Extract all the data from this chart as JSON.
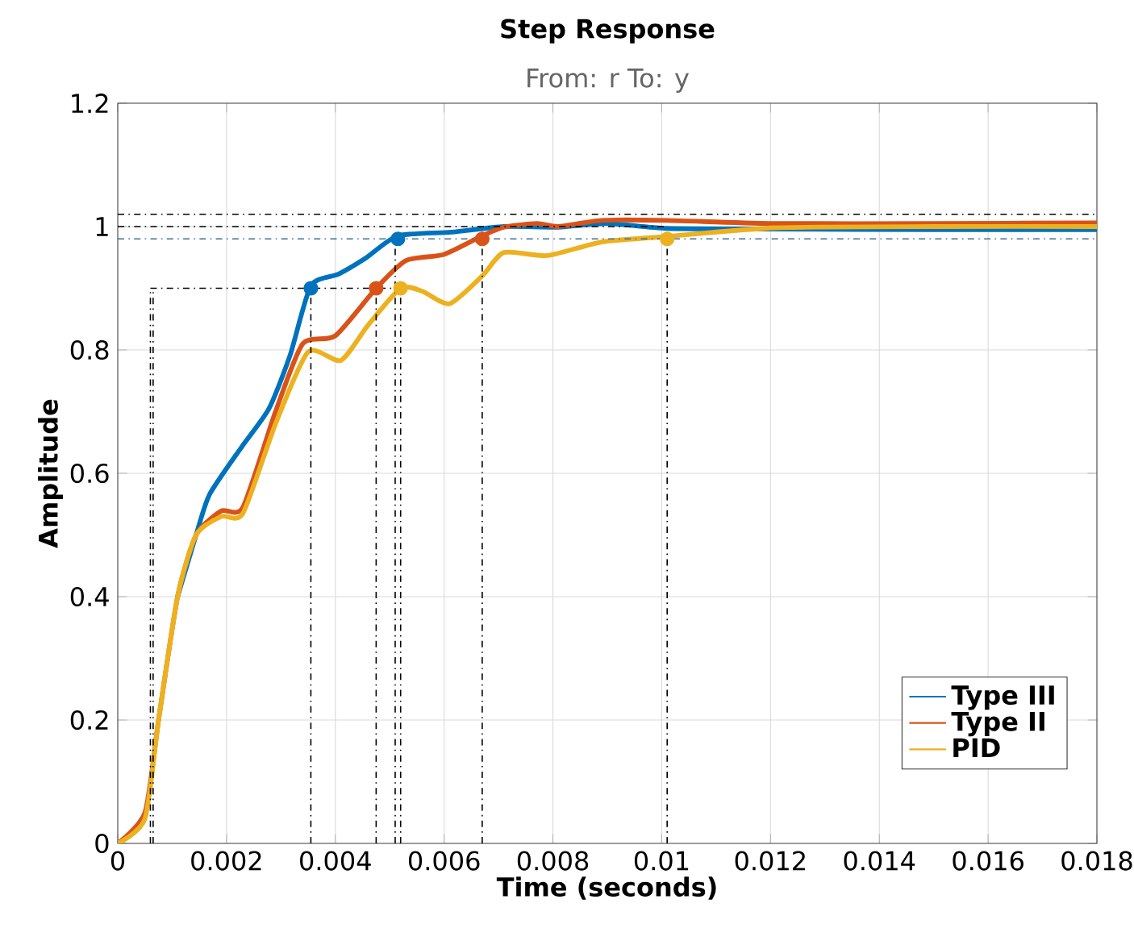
{
  "chart_data": {
    "type": "line",
    "title": "Step Response",
    "subtitle": "From: r To: y",
    "xlabel": "Time (seconds)",
    "ylabel": "Amplitude",
    "xlim": [
      0,
      0.018
    ],
    "ylim": [
      0,
      1.2
    ],
    "xticks": [
      0,
      0.002,
      0.004,
      0.006,
      0.008,
      0.01,
      0.012,
      0.014,
      0.016,
      0.018
    ],
    "yticks": [
      0,
      0.2,
      0.4,
      0.6,
      0.8,
      1,
      1.2
    ],
    "grid": true,
    "legend": "bottom right",
    "ref_lines": [
      {
        "axis": "y",
        "value": 1.02,
        "color": "#000000",
        "line_style": "dashed"
      },
      {
        "axis": "y",
        "value": 0.98,
        "color": "#3a6f9a",
        "line_style": "dashed"
      }
    ],
    "series": [
      {
        "name": "Type III",
        "color": "#0072bd",
        "x": [
          0.0011,
          0.00144,
          0.00169,
          0.00228,
          0.00278,
          0.00317,
          0.00355,
          0.00406,
          0.00456,
          0.00515,
          0.00614,
          0.0071,
          0.0081,
          0.009,
          0.0101,
          0.012,
          0.015,
          0.018
        ],
        "values": [
          0.4,
          0.5,
          0.566,
          0.643,
          0.705,
          0.792,
          0.904,
          0.923,
          0.949,
          0.985,
          0.991,
          1.0,
          0.999,
          1.005,
          0.997,
          0.996,
          0.995,
          0.995
        ]
      },
      {
        "name": "Type II",
        "color": "#d95319",
        "x": [
          0,
          0.0005,
          0.00075,
          0.0011,
          0.00144,
          0.0019,
          0.0023,
          0.0029,
          0.0034,
          0.004,
          0.00475,
          0.0053,
          0.006,
          0.0067,
          0.0071,
          0.0077,
          0.0081,
          0.0089,
          0.0101,
          0.012,
          0.015,
          0.018
        ],
        "values": [
          0,
          0.05,
          0.2,
          0.4,
          0.5,
          0.539,
          0.545,
          0.7,
          0.81,
          0.823,
          0.9,
          0.945,
          0.955,
          0.985,
          0.999,
          1.005,
          1.0,
          1.01,
          1.01,
          1.005,
          1.005,
          1.006
        ]
      },
      {
        "name": "PID",
        "color": "#edb120",
        "x": [
          0,
          0.0005,
          0.00075,
          0.0011,
          0.00144,
          0.0019,
          0.0023,
          0.0029,
          0.0035,
          0.0041,
          0.0046,
          0.0052,
          0.0056,
          0.0061,
          0.0067,
          0.0071,
          0.0079,
          0.0089,
          0.0101,
          0.0121,
          0.015,
          0.018
        ],
        "values": [
          0,
          0.04,
          0.2,
          0.4,
          0.5,
          0.53,
          0.535,
          0.68,
          0.797,
          0.783,
          0.84,
          0.9,
          0.895,
          0.875,
          0.92,
          0.958,
          0.953,
          0.975,
          0.984,
          0.998,
          1.0,
          1.0
        ]
      },
      {
        "type": "scatter",
        "marker": "circle",
        "color": "#0072bd",
        "x": [
          0.00355,
          0.00515
        ],
        "values": [
          0.9,
          0.98
        ]
      },
      {
        "type": "scatter",
        "marker": "circle",
        "color": "#d95319",
        "x": [
          0.00475,
          0.0067
        ],
        "values": [
          0.9,
          0.98
        ]
      },
      {
        "type": "scatter",
        "marker": "circle",
        "color": "#edb120",
        "x": [
          0.0052,
          0.0101
        ],
        "values": [
          0.9,
          0.98
        ]
      },
      {
        "type": "line",
        "color": "#000000",
        "line_style": "dashed",
        "x": [
          0.0006,
          0.0006,
          null,
          0.00065,
          0.00065,
          null,
          0.0006,
          0.0052,
          null,
          0.00355,
          0.00355,
          null,
          0.00475,
          0.00475,
          null,
          0.0051,
          0.0051,
          null,
          0.0052,
          0.0052,
          null,
          0.0067,
          0.0067,
          null,
          0.0101,
          0.0101,
          null,
          0,
          0.0101
        ],
        "values": [
          0,
          0.9,
          null,
          0,
          0.9,
          null,
          0.9,
          0.9,
          null,
          0,
          0.9,
          null,
          0,
          0.9,
          null,
          0,
          0.98,
          null,
          0,
          0.9,
          null,
          0,
          0.98,
          null,
          0,
          0.98,
          null,
          1.0,
          1.0
        ]
      }
    ]
  }
}
